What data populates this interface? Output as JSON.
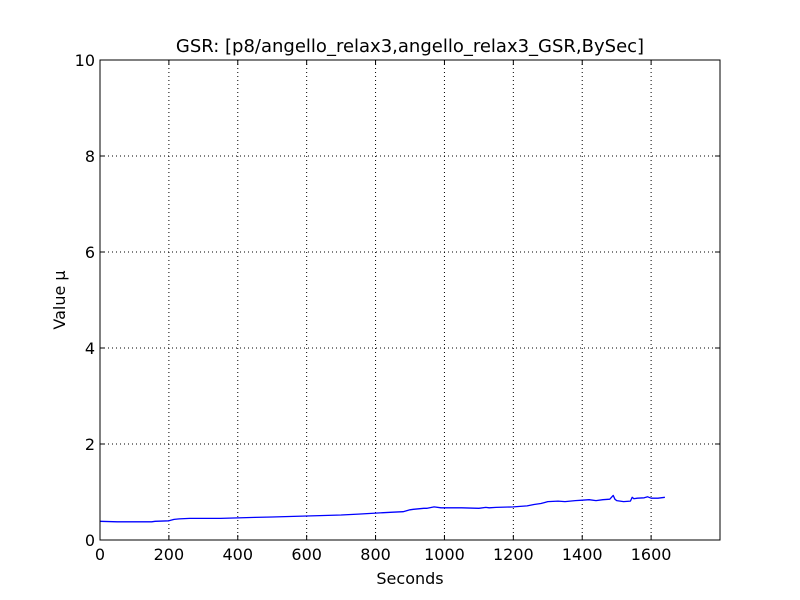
{
  "chart_data": {
    "type": "line",
    "title": "GSR: [p8/angello_relax3,angello_relax3_GSR,BySec]",
    "xlabel": "Seconds",
    "ylabel": "Value µ",
    "xlim": [
      0,
      1800
    ],
    "ylim": [
      0,
      10
    ],
    "xticks": [
      0,
      200,
      400,
      600,
      800,
      1000,
      1200,
      1400,
      1600
    ],
    "yticks": [
      0,
      2,
      4,
      6,
      8,
      10
    ],
    "grid": true,
    "line_color": "#0000ff",
    "series": [
      {
        "x": [
          0,
          50,
          100,
          150,
          160,
          200,
          215,
          230,
          260,
          300,
          350,
          400,
          450,
          500,
          550,
          600,
          650,
          700,
          750,
          800,
          850,
          880,
          900,
          910,
          940,
          950,
          970,
          990,
          1000,
          1050,
          1100,
          1120,
          1130,
          1150,
          1200,
          1240,
          1260,
          1280,
          1290,
          1300,
          1330,
          1350,
          1380,
          1400,
          1420,
          1440,
          1460,
          1480,
          1490,
          1495,
          1500,
          1520,
          1540,
          1545,
          1550,
          1560,
          1580,
          1590,
          1600,
          1620,
          1640
        ],
        "y": [
          0.39,
          0.38,
          0.38,
          0.38,
          0.39,
          0.4,
          0.43,
          0.44,
          0.45,
          0.45,
          0.45,
          0.46,
          0.47,
          0.48,
          0.49,
          0.5,
          0.51,
          0.52,
          0.54,
          0.56,
          0.58,
          0.59,
          0.63,
          0.64,
          0.66,
          0.66,
          0.69,
          0.67,
          0.67,
          0.67,
          0.66,
          0.68,
          0.67,
          0.68,
          0.69,
          0.71,
          0.74,
          0.76,
          0.78,
          0.8,
          0.81,
          0.8,
          0.82,
          0.83,
          0.84,
          0.82,
          0.84,
          0.85,
          0.93,
          0.85,
          0.82,
          0.8,
          0.81,
          0.89,
          0.86,
          0.87,
          0.88,
          0.9,
          0.87,
          0.87,
          0.89
        ]
      }
    ]
  }
}
